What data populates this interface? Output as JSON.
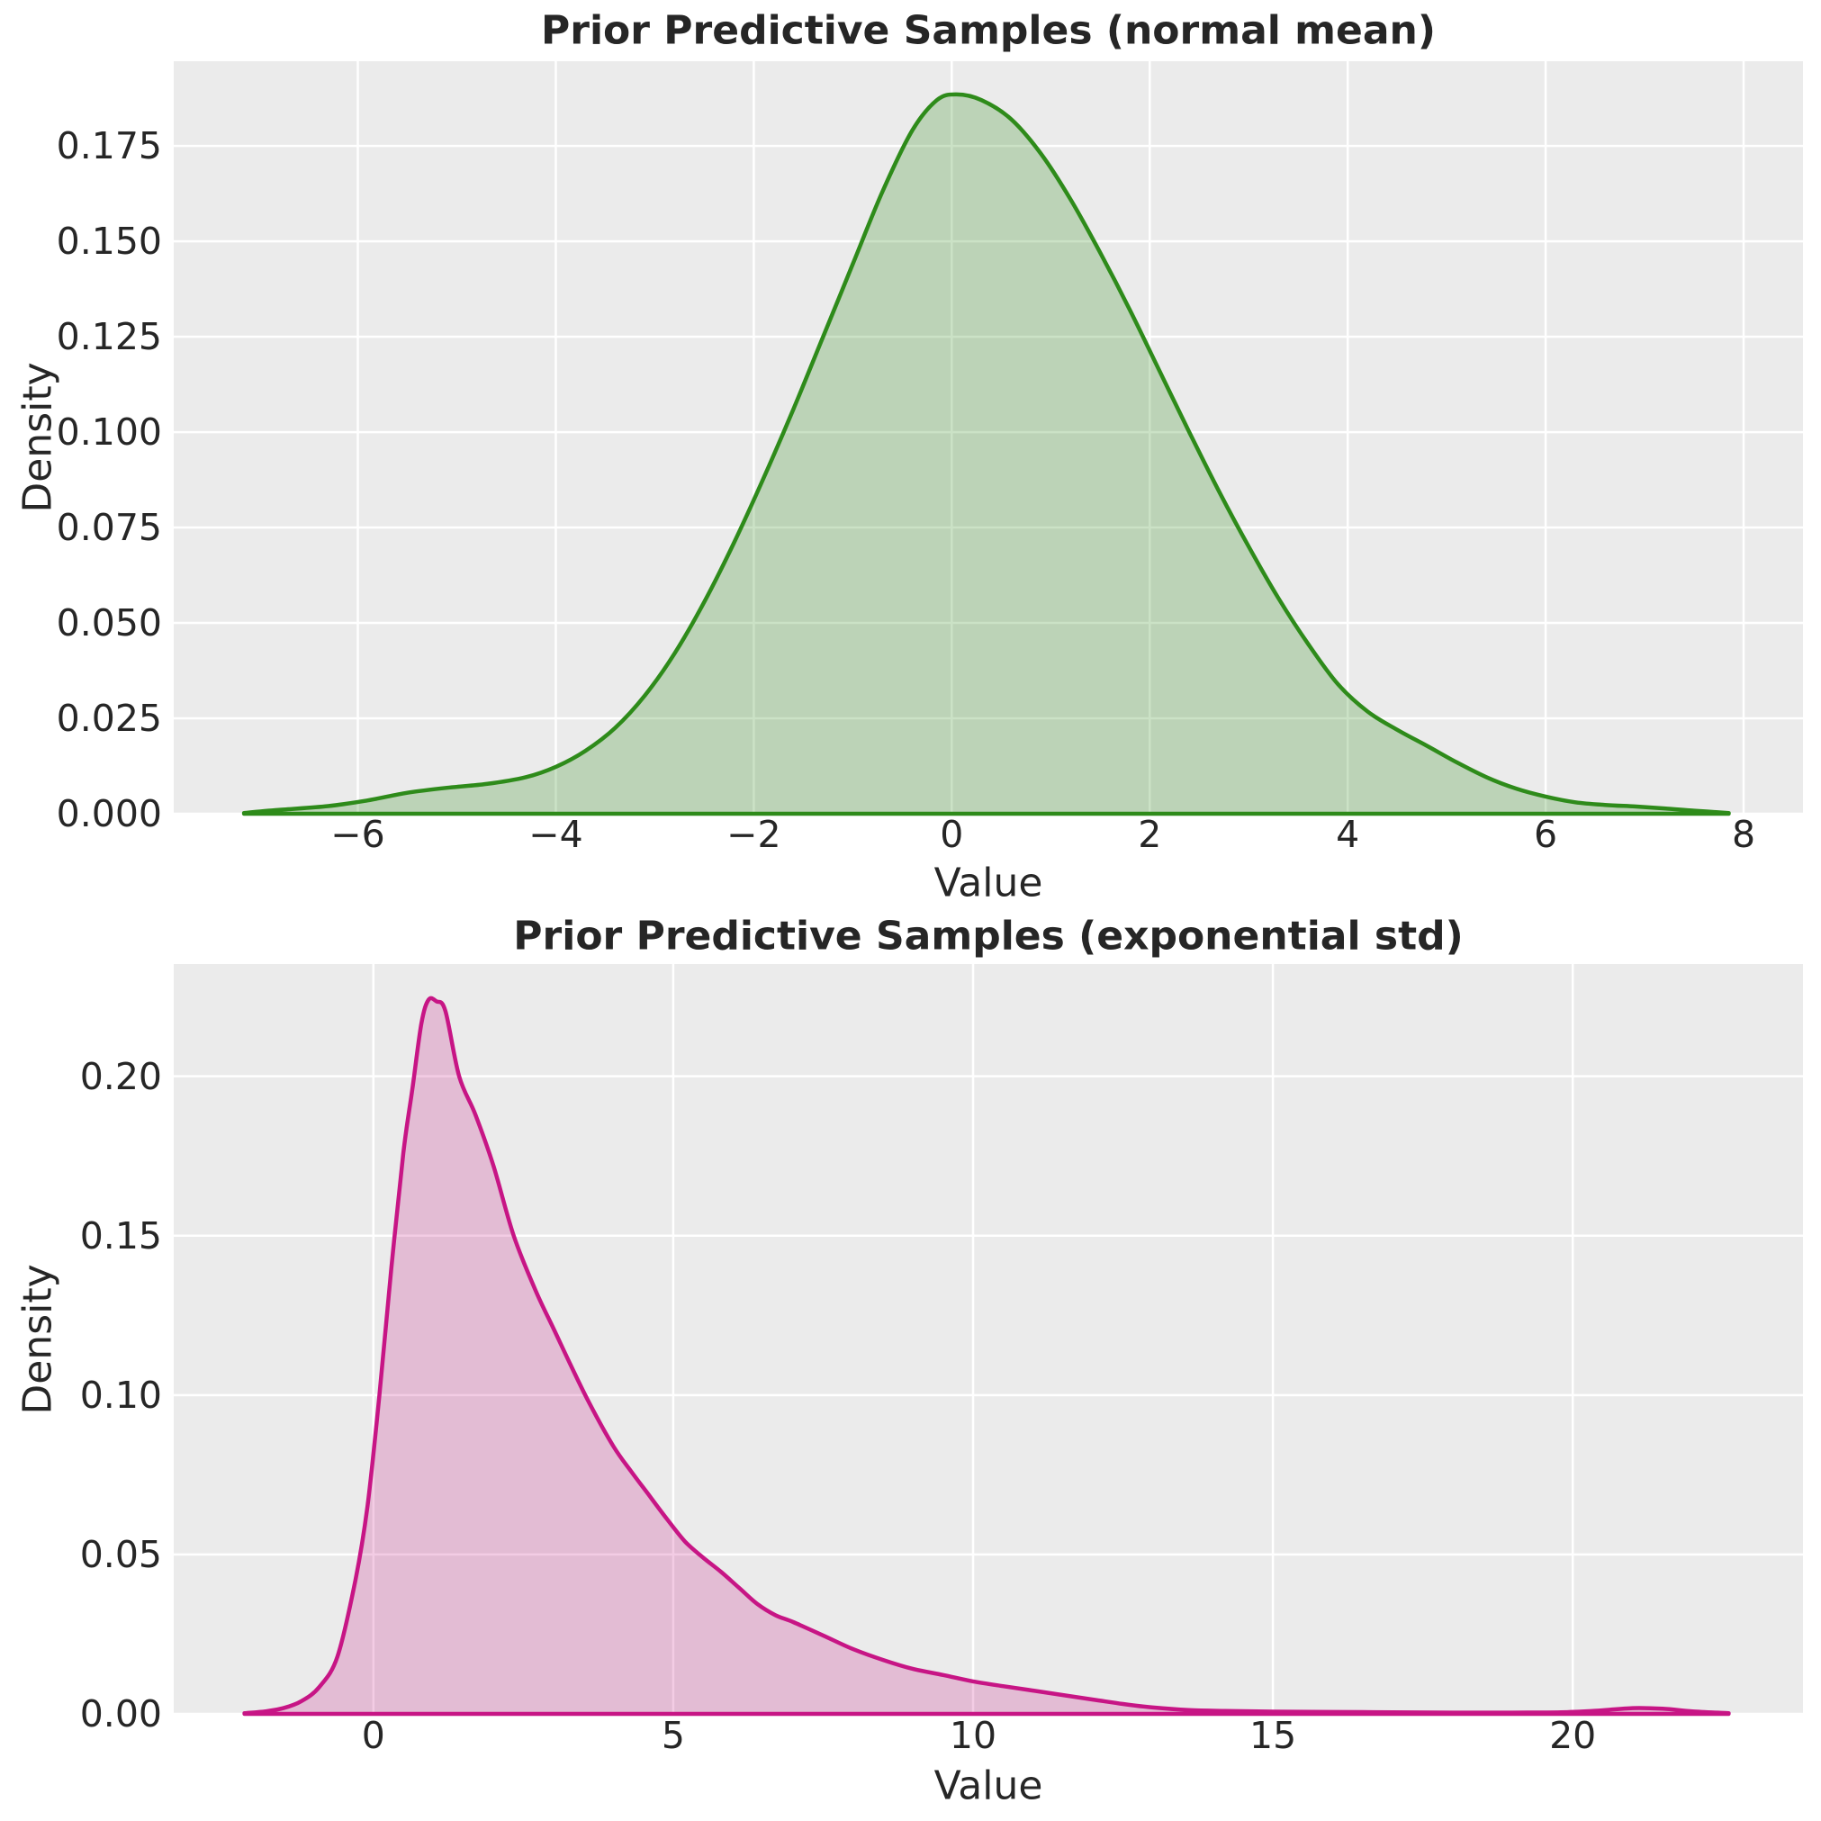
{
  "figure": {
    "background": "#ffffff",
    "plot_background": "#ebebeb",
    "grid_color": "#ffffff",
    "text_color": "#262626"
  },
  "chart_data": [
    {
      "type": "area",
      "title": "Prior Predictive Samples (normal mean)",
      "xlabel": "Value",
      "ylabel": "Density",
      "legend": "none",
      "grid": true,
      "line_color": "#2e8b1a",
      "fill_color": "rgba(46,139,26,0.25)",
      "xlim": [
        -7.86,
        8.6
      ],
      "ylim": [
        0,
        0.1972
      ],
      "xticks": {
        "values": [
          -6,
          -4,
          -2,
          0,
          2,
          4,
          6,
          8
        ],
        "labels": [
          "−6",
          "−4",
          "−2",
          "0",
          "2",
          "4",
          "6",
          "8"
        ]
      },
      "yticks": {
        "values": [
          0.0,
          0.025,
          0.05,
          0.075,
          0.1,
          0.125,
          0.15,
          0.175
        ],
        "labels": [
          "0.000",
          "0.025",
          "0.050",
          "0.075",
          "0.100",
          "0.125",
          "0.150",
          "0.175"
        ]
      },
      "points": [
        [
          -7.15,
          0.0002
        ],
        [
          -6.8,
          0.001
        ],
        [
          -6.3,
          0.002
        ],
        [
          -5.9,
          0.0035
        ],
        [
          -5.5,
          0.0055
        ],
        [
          -5.1,
          0.0068
        ],
        [
          -4.7,
          0.0078
        ],
        [
          -4.3,
          0.0096
        ],
        [
          -4.0,
          0.0123
        ],
        [
          -3.7,
          0.0165
        ],
        [
          -3.4,
          0.0225
        ],
        [
          -3.1,
          0.031
        ],
        [
          -2.8,
          0.042
        ],
        [
          -2.5,
          0.0555
        ],
        [
          -2.2,
          0.071
        ],
        [
          -1.9,
          0.088
        ],
        [
          -1.6,
          0.106
        ],
        [
          -1.3,
          0.125
        ],
        [
          -1.0,
          0.144
        ],
        [
          -0.7,
          0.163
        ],
        [
          -0.4,
          0.179
        ],
        [
          -0.15,
          0.187
        ],
        [
          0.05,
          0.1885
        ],
        [
          0.3,
          0.187
        ],
        [
          0.6,
          0.182
        ],
        [
          0.9,
          0.173
        ],
        [
          1.2,
          0.161
        ],
        [
          1.5,
          0.147
        ],
        [
          1.8,
          0.132
        ],
        [
          2.1,
          0.116
        ],
        [
          2.4,
          0.1
        ],
        [
          2.7,
          0.0845
        ],
        [
          3.0,
          0.07
        ],
        [
          3.3,
          0.0565
        ],
        [
          3.6,
          0.0445
        ],
        [
          3.9,
          0.034
        ],
        [
          4.2,
          0.0268
        ],
        [
          4.5,
          0.022
        ],
        [
          4.8,
          0.0178
        ],
        [
          5.1,
          0.0135
        ],
        [
          5.4,
          0.0096
        ],
        [
          5.7,
          0.0066
        ],
        [
          6.0,
          0.0045
        ],
        [
          6.3,
          0.003
        ],
        [
          6.6,
          0.0023
        ],
        [
          6.9,
          0.0019
        ],
        [
          7.2,
          0.0014
        ],
        [
          7.5,
          0.0008
        ],
        [
          7.85,
          0.0002
        ]
      ]
    },
    {
      "type": "area",
      "title": "Prior Predictive Samples (exponential std)",
      "xlabel": "Value",
      "ylabel": "Density",
      "legend": "none",
      "grid": true,
      "line_color": "#c71585",
      "fill_color": "rgba(199,21,133,0.22)",
      "xlim": [
        -3.33,
        23.84
      ],
      "ylim": [
        0,
        0.2352
      ],
      "xticks": {
        "values": [
          0,
          5,
          10,
          15,
          20
        ],
        "labels": [
          "0",
          "5",
          "10",
          "15",
          "20"
        ]
      },
      "yticks": {
        "values": [
          0.0,
          0.05,
          0.1,
          0.15,
          0.2
        ],
        "labels": [
          "0.00",
          "0.05",
          "0.10",
          "0.15",
          "0.20"
        ]
      },
      "points": [
        [
          -2.15,
          0.0002
        ],
        [
          -1.8,
          0.0008
        ],
        [
          -1.5,
          0.0018
        ],
        [
          -1.2,
          0.004
        ],
        [
          -0.9,
          0.0085
        ],
        [
          -0.6,
          0.018
        ],
        [
          -0.3,
          0.042
        ],
        [
          -0.1,
          0.065
        ],
        [
          0.1,
          0.1
        ],
        [
          0.3,
          0.14
        ],
        [
          0.5,
          0.176
        ],
        [
          0.65,
          0.196
        ],
        [
          0.8,
          0.2165
        ],
        [
          0.92,
          0.224
        ],
        [
          1.05,
          0.2235
        ],
        [
          1.2,
          0.2205
        ],
        [
          1.43,
          0.2
        ],
        [
          1.7,
          0.188
        ],
        [
          2.0,
          0.172
        ],
        [
          2.34,
          0.15
        ],
        [
          2.7,
          0.133
        ],
        [
          3.0,
          0.121
        ],
        [
          3.3,
          0.109
        ],
        [
          3.6,
          0.0975
        ],
        [
          4.0,
          0.084
        ],
        [
          4.3,
          0.076
        ],
        [
          4.6,
          0.0685
        ],
        [
          4.9,
          0.061
        ],
        [
          5.2,
          0.054
        ],
        [
          5.5,
          0.049
        ],
        [
          5.8,
          0.0445
        ],
        [
          6.1,
          0.0395
        ],
        [
          6.4,
          0.0345
        ],
        [
          6.7,
          0.031
        ],
        [
          7.0,
          0.0288
        ],
        [
          7.5,
          0.0246
        ],
        [
          8.0,
          0.0203
        ],
        [
          8.5,
          0.0169
        ],
        [
          9.0,
          0.0141
        ],
        [
          9.5,
          0.0122
        ],
        [
          10.0,
          0.0102
        ],
        [
          10.5,
          0.0087
        ],
        [
          11.0,
          0.0073
        ],
        [
          11.5,
          0.0059
        ],
        [
          12.0,
          0.0045
        ],
        [
          12.5,
          0.0031
        ],
        [
          13.0,
          0.002
        ],
        [
          13.6,
          0.0012
        ],
        [
          14.2,
          0.0009
        ],
        [
          15.0,
          0.0007
        ],
        [
          16.0,
          0.0006
        ],
        [
          17.0,
          0.0005
        ],
        [
          18.0,
          0.0004
        ],
        [
          19.0,
          0.0004
        ],
        [
          19.8,
          0.0005
        ],
        [
          20.4,
          0.001
        ],
        [
          21.0,
          0.0018
        ],
        [
          21.5,
          0.0016
        ],
        [
          22.0,
          0.0008
        ],
        [
          22.6,
          0.0002
        ]
      ]
    }
  ]
}
